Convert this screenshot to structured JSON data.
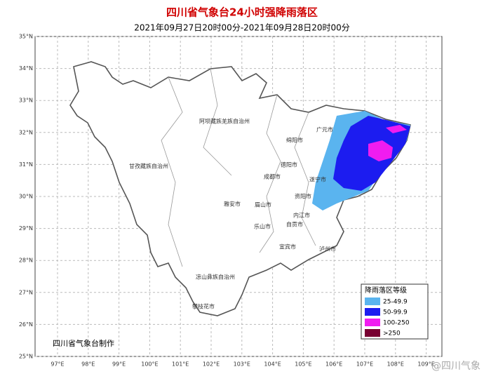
{
  "header": {
    "title": "四川省气象台24小时强降雨落区",
    "subtitle": "2021年09月27日20时00分-2021年09月28日20时00分"
  },
  "map": {
    "lat_ticks": [
      {
        "value": 25,
        "label": "25°N"
      },
      {
        "value": 26,
        "label": "26°N"
      },
      {
        "value": 27,
        "label": "27°N"
      },
      {
        "value": 28,
        "label": "28°N"
      },
      {
        "value": 29,
        "label": "29°N"
      },
      {
        "value": 30,
        "label": "30°N"
      },
      {
        "value": 31,
        "label": "31°N"
      },
      {
        "value": 32,
        "label": "32°N"
      },
      {
        "value": 33,
        "label": "33°N"
      },
      {
        "value": 34,
        "label": "34°N"
      },
      {
        "value": 35,
        "label": "35°N"
      }
    ],
    "lon_ticks": [
      {
        "value": 97,
        "label": "97°E"
      },
      {
        "value": 98,
        "label": "98°E"
      },
      {
        "value": 99,
        "label": "99°E"
      },
      {
        "value": 100,
        "label": "100°E"
      },
      {
        "value": 101,
        "label": "101°E"
      },
      {
        "value": 102,
        "label": "102°E"
      },
      {
        "value": 103,
        "label": "103°E"
      },
      {
        "value": 104,
        "label": "104°E"
      },
      {
        "value": 105,
        "label": "105°E"
      },
      {
        "value": 106,
        "label": "106°E"
      },
      {
        "value": 107,
        "label": "107°E"
      },
      {
        "value": 108,
        "label": "108°E"
      },
      {
        "value": 109,
        "label": "109°E"
      }
    ],
    "regions": [
      "阿坝藏族羌族自治州",
      "甘孜藏族自治州",
      "广元市",
      "绵阳市",
      "德阳市",
      "成都市",
      "遂宁市",
      "资阳市",
      "雅安市",
      "眉山市",
      "乐山市",
      "内江市",
      "自贡市",
      "宜宾市",
      "泸州市",
      "凉山彝族自治州",
      "攀枝花市"
    ],
    "credit": "四川省气象台制作"
  },
  "legend": {
    "title": "降雨落区等级",
    "items": [
      {
        "label": "25-49.9",
        "color": "#5ab4ef"
      },
      {
        "label": "50-99.9",
        "color": "#1c1cf0"
      },
      {
        "label": "100-250",
        "color": "#f01cf0"
      },
      {
        "label": ">250",
        "color": "#780032"
      }
    ]
  },
  "watermark": "@四川气象"
}
